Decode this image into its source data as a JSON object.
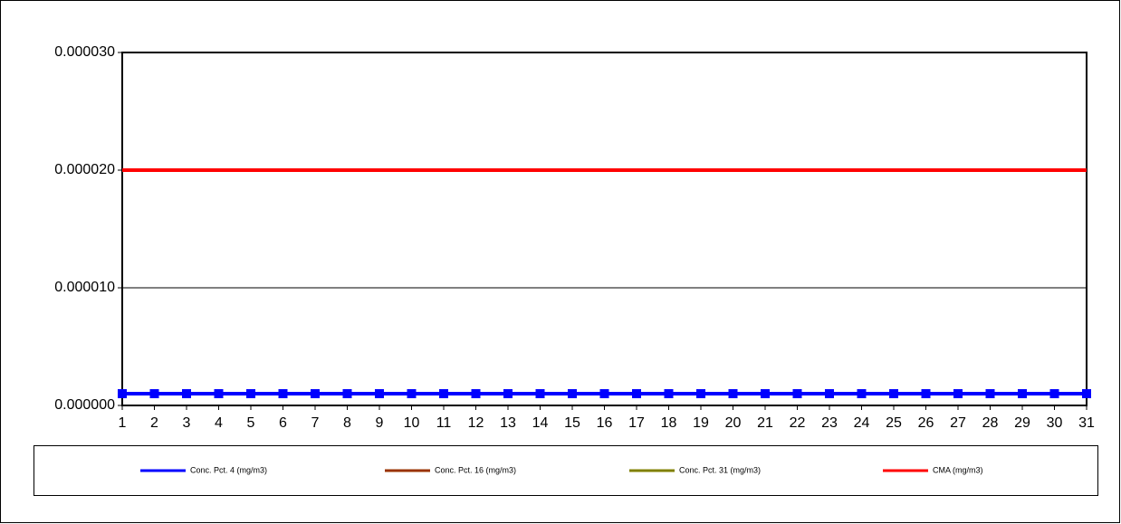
{
  "chart_data": {
    "type": "line",
    "categories": [
      "1",
      "2",
      "3",
      "4",
      "5",
      "6",
      "7",
      "8",
      "9",
      "10",
      "11",
      "12",
      "13",
      "14",
      "15",
      "16",
      "17",
      "18",
      "19",
      "20",
      "21",
      "22",
      "23",
      "24",
      "25",
      "26",
      "27",
      "28",
      "29",
      "30",
      "31"
    ],
    "series": [
      {
        "name": "Conc. Pct. 4 (mg/m3)",
        "color": "#0000ff",
        "marker": "square",
        "values": [
          1e-06,
          1e-06,
          1e-06,
          1e-06,
          1e-06,
          1e-06,
          1e-06,
          1e-06,
          1e-06,
          1e-06,
          1e-06,
          1e-06,
          1e-06,
          1e-06,
          1e-06,
          1e-06,
          1e-06,
          1e-06,
          1e-06,
          1e-06,
          1e-06,
          1e-06,
          1e-06,
          1e-06,
          1e-06,
          1e-06,
          1e-06,
          1e-06,
          1e-06,
          1e-06,
          1e-06
        ]
      },
      {
        "name": "Conc. Pct. 16 (mg/m3)",
        "color": "#993300",
        "marker": "square",
        "values": [
          1e-06,
          1e-06,
          1e-06,
          1e-06,
          1e-06,
          1e-06,
          1e-06,
          1e-06,
          1e-06,
          1e-06,
          1e-06,
          1e-06,
          1e-06,
          1e-06,
          1e-06,
          1e-06,
          1e-06,
          1e-06,
          1e-06,
          1e-06,
          1e-06,
          1e-06,
          1e-06,
          1e-06,
          1e-06,
          1e-06,
          1e-06,
          1e-06,
          1e-06,
          1e-06,
          1e-06
        ]
      },
      {
        "name": "Conc. Pct. 31 (mg/m3)",
        "color": "#808000",
        "marker": "square",
        "values": [
          1e-06,
          1e-06,
          1e-06,
          1e-06,
          1e-06,
          1e-06,
          1e-06,
          1e-06,
          1e-06,
          1e-06,
          1e-06,
          1e-06,
          1e-06,
          1e-06,
          1e-06,
          1e-06,
          1e-06,
          1e-06,
          1e-06,
          1e-06,
          1e-06,
          1e-06,
          1e-06,
          1e-06,
          1e-06,
          1e-06,
          1e-06,
          1e-06,
          1e-06,
          1e-06,
          1e-06
        ]
      },
      {
        "name": "CMA (mg/m3)",
        "color": "#ff0000",
        "marker": "none",
        "values": [
          2e-05,
          2e-05,
          2e-05,
          2e-05,
          2e-05,
          2e-05,
          2e-05,
          2e-05,
          2e-05,
          2e-05,
          2e-05,
          2e-05,
          2e-05,
          2e-05,
          2e-05,
          2e-05,
          2e-05,
          2e-05,
          2e-05,
          2e-05,
          2e-05,
          2e-05,
          2e-05,
          2e-05,
          2e-05,
          2e-05,
          2e-05,
          2e-05,
          2e-05,
          2e-05,
          2e-05
        ]
      }
    ],
    "ylim": [
      0,
      3e-05
    ],
    "yticks": [
      {
        "value": 0,
        "label": "0.000000"
      },
      {
        "value": 1e-05,
        "label": "0.000010"
      },
      {
        "value": 2e-05,
        "label": "0.000020"
      },
      {
        "value": 3e-05,
        "label": "0.000030"
      }
    ],
    "grid": true,
    "legend": "bottom"
  }
}
